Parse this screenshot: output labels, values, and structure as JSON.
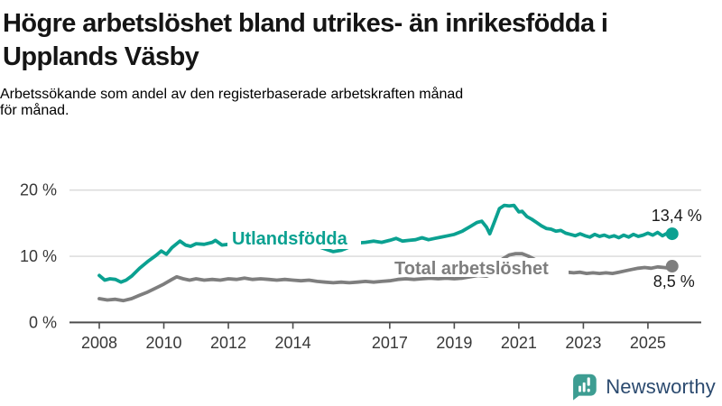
{
  "header": {
    "title_lines": [
      "Högre arbetslöshet bland utrikes- än inrikesfödda i",
      "Upplands Väsby"
    ],
    "subtitle_lines": [
      "Arbetssökande som andel av den registerbaserade arbetskraften månad",
      "för månad."
    ]
  },
  "chart_data": {
    "type": "line",
    "title": "Högre arbetslöshet bland utrikes- än inrikesfödda i Upplands Väsby",
    "subtitle": "Arbetssökande som andel av den registerbaserade arbetskraften månad för månad.",
    "xlabel": "",
    "ylabel": "",
    "x_range": [
      2008.0,
      2025.75
    ],
    "y_range": [
      0,
      20
    ],
    "grid": true,
    "legend_position": "inline-labels",
    "x_ticks": [
      2008,
      2010,
      2012,
      2014,
      2017,
      2019,
      2021,
      2023,
      2025
    ],
    "y_ticks": [
      {
        "value": 0,
        "label": "0 %"
      },
      {
        "value": 10,
        "label": "10 %"
      },
      {
        "value": 20,
        "label": "20 %"
      }
    ],
    "colors": {
      "grid": "#d9d9d9",
      "axis": "#4d4d4d",
      "axis_text": "#383838",
      "value_text": "#1a1a1a"
    },
    "series": [
      {
        "name": "Utlandsfödda",
        "color": "#0ba191",
        "end_label": "13,4 %",
        "end_value": 13.4,
        "points": [
          [
            2008.0,
            7.1
          ],
          [
            2008.17,
            6.4
          ],
          [
            2008.33,
            6.6
          ],
          [
            2008.5,
            6.5
          ],
          [
            2008.67,
            6.1
          ],
          [
            2008.83,
            6.4
          ],
          [
            2009.0,
            7.0
          ],
          [
            2009.25,
            8.2
          ],
          [
            2009.5,
            9.2
          ],
          [
            2009.75,
            10.1
          ],
          [
            2009.92,
            10.8
          ],
          [
            2010.08,
            10.3
          ],
          [
            2010.25,
            11.3
          ],
          [
            2010.5,
            12.3
          ],
          [
            2010.67,
            11.7
          ],
          [
            2010.83,
            11.5
          ],
          [
            2011.0,
            11.9
          ],
          [
            2011.25,
            11.8
          ],
          [
            2011.5,
            12.1
          ],
          [
            2011.6,
            12.4
          ],
          [
            2011.8,
            11.7
          ],
          [
            2012.0,
            11.8
          ],
          [
            2012.25,
            11.5
          ],
          [
            2012.5,
            11.7
          ],
          [
            2012.75,
            11.5
          ],
          [
            2013.0,
            11.7
          ],
          [
            2013.25,
            11.5
          ],
          [
            2013.5,
            11.6
          ],
          [
            2013.75,
            11.7
          ],
          [
            2014.0,
            11.5
          ],
          [
            2014.25,
            11.6
          ],
          [
            2014.5,
            11.4
          ],
          [
            2014.75,
            11.5
          ],
          [
            2015.0,
            11.1
          ],
          [
            2015.25,
            10.7
          ],
          [
            2015.5,
            10.9
          ],
          [
            2015.75,
            11.4
          ],
          [
            2016.0,
            12.0
          ],
          [
            2016.25,
            12.1
          ],
          [
            2016.5,
            12.3
          ],
          [
            2016.75,
            12.1
          ],
          [
            2017.0,
            12.4
          ],
          [
            2017.2,
            12.7
          ],
          [
            2017.4,
            12.3
          ],
          [
            2017.6,
            12.4
          ],
          [
            2017.8,
            12.5
          ],
          [
            2018.0,
            12.8
          ],
          [
            2018.2,
            12.5
          ],
          [
            2018.4,
            12.7
          ],
          [
            2018.6,
            12.9
          ],
          [
            2018.8,
            13.1
          ],
          [
            2019.0,
            13.3
          ],
          [
            2019.25,
            13.8
          ],
          [
            2019.5,
            14.5
          ],
          [
            2019.7,
            15.1
          ],
          [
            2019.85,
            15.3
          ],
          [
            2020.0,
            14.4
          ],
          [
            2020.1,
            13.4
          ],
          [
            2020.25,
            15.3
          ],
          [
            2020.4,
            17.2
          ],
          [
            2020.55,
            17.7
          ],
          [
            2020.7,
            17.6
          ],
          [
            2020.85,
            17.7
          ],
          [
            2021.0,
            16.7
          ],
          [
            2021.1,
            16.8
          ],
          [
            2021.25,
            16.0
          ],
          [
            2021.4,
            15.6
          ],
          [
            2021.55,
            15.1
          ],
          [
            2021.7,
            14.6
          ],
          [
            2021.85,
            14.2
          ],
          [
            2022.0,
            14.1
          ],
          [
            2022.15,
            13.8
          ],
          [
            2022.3,
            13.9
          ],
          [
            2022.45,
            13.5
          ],
          [
            2022.6,
            13.3
          ],
          [
            2022.75,
            13.1
          ],
          [
            2022.9,
            13.4
          ],
          [
            2023.05,
            13.1
          ],
          [
            2023.2,
            12.9
          ],
          [
            2023.35,
            13.3
          ],
          [
            2023.5,
            13.0
          ],
          [
            2023.65,
            13.2
          ],
          [
            2023.8,
            12.9
          ],
          [
            2023.95,
            13.1
          ],
          [
            2024.1,
            12.8
          ],
          [
            2024.25,
            13.2
          ],
          [
            2024.4,
            12.9
          ],
          [
            2024.55,
            13.3
          ],
          [
            2024.7,
            13.0
          ],
          [
            2024.85,
            13.2
          ],
          [
            2025.0,
            13.5
          ],
          [
            2025.15,
            13.2
          ],
          [
            2025.3,
            13.6
          ],
          [
            2025.45,
            13.1
          ],
          [
            2025.6,
            13.5
          ],
          [
            2025.75,
            13.4
          ]
        ]
      },
      {
        "name": "Total arbetslöshet",
        "color": "#7e7e7e",
        "end_label": "8,5 %",
        "end_value": 8.5,
        "points": [
          [
            2008.0,
            3.6
          ],
          [
            2008.25,
            3.4
          ],
          [
            2008.5,
            3.5
          ],
          [
            2008.75,
            3.3
          ],
          [
            2009.0,
            3.6
          ],
          [
            2009.25,
            4.1
          ],
          [
            2009.5,
            4.6
          ],
          [
            2009.75,
            5.2
          ],
          [
            2010.0,
            5.8
          ],
          [
            2010.25,
            6.5
          ],
          [
            2010.4,
            6.9
          ],
          [
            2010.6,
            6.6
          ],
          [
            2010.8,
            6.4
          ],
          [
            2011.0,
            6.6
          ],
          [
            2011.25,
            6.4
          ],
          [
            2011.5,
            6.5
          ],
          [
            2011.75,
            6.4
          ],
          [
            2012.0,
            6.6
          ],
          [
            2012.25,
            6.5
          ],
          [
            2012.5,
            6.7
          ],
          [
            2012.75,
            6.5
          ],
          [
            2013.0,
            6.6
          ],
          [
            2013.25,
            6.5
          ],
          [
            2013.5,
            6.4
          ],
          [
            2013.75,
            6.5
          ],
          [
            2014.0,
            6.4
          ],
          [
            2014.25,
            6.3
          ],
          [
            2014.5,
            6.4
          ],
          [
            2014.75,
            6.2
          ],
          [
            2015.0,
            6.1
          ],
          [
            2015.25,
            6.0
          ],
          [
            2015.5,
            6.1
          ],
          [
            2015.75,
            6.0
          ],
          [
            2016.0,
            6.1
          ],
          [
            2016.25,
            6.2
          ],
          [
            2016.5,
            6.1
          ],
          [
            2016.75,
            6.2
          ],
          [
            2017.0,
            6.3
          ],
          [
            2017.25,
            6.5
          ],
          [
            2017.5,
            6.6
          ],
          [
            2017.75,
            6.5
          ],
          [
            2018.0,
            6.6
          ],
          [
            2018.25,
            6.7
          ],
          [
            2018.5,
            6.6
          ],
          [
            2018.75,
            6.7
          ],
          [
            2019.0,
            6.6
          ],
          [
            2019.25,
            6.7
          ],
          [
            2019.5,
            6.9
          ],
          [
            2019.75,
            7.1
          ],
          [
            2020.0,
            7.0
          ],
          [
            2020.15,
            7.3
          ],
          [
            2020.3,
            8.6
          ],
          [
            2020.5,
            9.6
          ],
          [
            2020.7,
            10.2
          ],
          [
            2020.9,
            10.4
          ],
          [
            2021.1,
            10.4
          ],
          [
            2021.3,
            10.0
          ],
          [
            2021.5,
            9.5
          ],
          [
            2021.7,
            9.0
          ],
          [
            2021.9,
            8.6
          ],
          [
            2022.1,
            8.2
          ],
          [
            2022.3,
            7.9
          ],
          [
            2022.5,
            7.6
          ],
          [
            2022.7,
            7.5
          ],
          [
            2022.9,
            7.6
          ],
          [
            2023.1,
            7.4
          ],
          [
            2023.3,
            7.5
          ],
          [
            2023.5,
            7.4
          ],
          [
            2023.7,
            7.5
          ],
          [
            2023.9,
            7.4
          ],
          [
            2024.1,
            7.6
          ],
          [
            2024.3,
            7.8
          ],
          [
            2024.5,
            8.0
          ],
          [
            2024.7,
            8.2
          ],
          [
            2024.9,
            8.3
          ],
          [
            2025.1,
            8.2
          ],
          [
            2025.3,
            8.4
          ],
          [
            2025.5,
            8.3
          ],
          [
            2025.65,
            8.2
          ],
          [
            2025.75,
            8.5
          ]
        ]
      }
    ]
  },
  "footer": {
    "brand": "Newsworthy",
    "brand_text_color": "#2b4a6f",
    "logo_color": "#3d9d92"
  }
}
